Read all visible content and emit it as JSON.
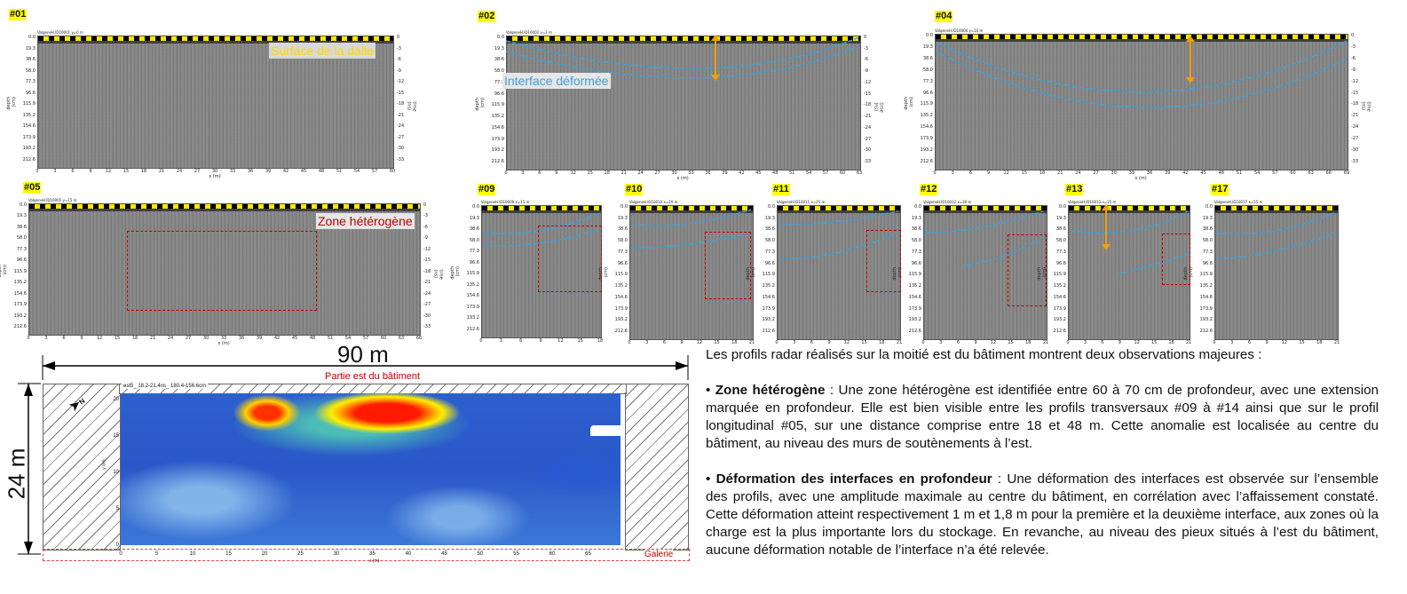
{
  "panels": [
    {
      "id": "p01",
      "tag": "#01",
      "file": "ValgeneH.ID10001   y=0 m",
      "yticks": [
        "0.0",
        "19.3",
        "38.6",
        "58.0",
        "77.3",
        "96.6",
        "115.9",
        "135.2",
        "154.6",
        "173.9",
        "193.2",
        "212.6"
      ],
      "yrticks": [
        "0",
        "-3",
        "-6",
        "-9",
        "-12",
        "-15",
        "-18",
        "-21",
        "-24",
        "-27",
        "-30",
        "-33"
      ],
      "xticks": [
        "0",
        "3",
        "6",
        "9",
        "12",
        "15",
        "18",
        "21",
        "24",
        "27",
        "30",
        "33",
        "36",
        "39",
        "42",
        "45",
        "48",
        "51",
        "54",
        "57",
        "60"
      ],
      "xlabel": "x (m)",
      "ylabel": "depth (cm)",
      "yrlabel": "time (ns)"
    },
    {
      "id": "p02",
      "tag": "#02",
      "file": "ValgeneH.ID10002   y=1 m",
      "yticks": [
        "0.0",
        "19.3",
        "38.6",
        "58.0",
        "77.3",
        "96.6",
        "115.9",
        "135.2",
        "154.6",
        "173.9",
        "193.2",
        "212.6"
      ],
      "yrticks": [
        "0",
        "-3",
        "-6",
        "-9",
        "-12",
        "-15",
        "-18",
        "-21",
        "-24",
        "-27",
        "-30",
        "-33"
      ],
      "xticks": [
        "0",
        "3",
        "6",
        "9",
        "12",
        "15",
        "18",
        "21",
        "24",
        "27",
        "30",
        "33",
        "36",
        "39",
        "42",
        "45",
        "48",
        "51",
        "54",
        "57",
        "60",
        "63"
      ],
      "xlabel": "x (m)",
      "ylabel": "depth (cm)",
      "yrlabel": "time (ns)"
    },
    {
      "id": "p04",
      "tag": "#04",
      "file": "ValgeneH.ID10004   y=10 m",
      "yticks": [
        "0.0",
        "19.3",
        "38.6",
        "58.0",
        "77.3",
        "96.6",
        "115.9",
        "135.2",
        "154.6",
        "173.9",
        "193.2",
        "212.6"
      ],
      "yrticks": [
        "0",
        "-3",
        "-6",
        "-9",
        "-12",
        "-15",
        "-18",
        "-21",
        "-24",
        "-27",
        "-30",
        "-33"
      ],
      "xticks": [
        "0",
        "3",
        "6",
        "9",
        "12",
        "15",
        "18",
        "21",
        "24",
        "27",
        "30",
        "33",
        "36",
        "39",
        "42",
        "45",
        "48",
        "51",
        "54",
        "57",
        "60",
        "63",
        "66",
        "69"
      ],
      "xlabel": "x (m)",
      "ylabel": "depth (cm)",
      "yrlabel": "time (ns)"
    },
    {
      "id": "p05",
      "tag": "#05",
      "file": "ValgeneH.ID10005   y=15 m",
      "yticks": [
        "0.0",
        "19.3",
        "38.6",
        "58.0",
        "77.3",
        "96.6",
        "115.9",
        "135.2",
        "154.6",
        "173.9",
        "193.2",
        "212.6"
      ],
      "yrticks": [
        "0",
        "-3",
        "-6",
        "-9",
        "-12",
        "-15",
        "-18",
        "-21",
        "-24",
        "-27",
        "-30",
        "-33"
      ],
      "xticks": [
        "0",
        "3",
        "6",
        "9",
        "12",
        "15",
        "18",
        "21",
        "24",
        "27",
        "30",
        "33",
        "36",
        "39",
        "42",
        "45",
        "48",
        "51",
        "54",
        "57",
        "60",
        "63",
        "66"
      ],
      "xlabel": "x (m)",
      "ylabel": "depth (cm)",
      "yrlabel": "time (ns)"
    },
    {
      "id": "p09",
      "tag": "#09",
      "file": "ValgeneH.ID10009   x=15 m",
      "yticks": [
        "0.0",
        "19.3",
        "38.6",
        "58.0",
        "77.3",
        "96.6",
        "115.9",
        "135.2",
        "154.6",
        "173.9",
        "193.2",
        "212.6"
      ],
      "xticks": [
        "0",
        "3",
        "6",
        "9",
        "12",
        "15",
        "18"
      ],
      "xlabel": "",
      "ylabel": "depth (cm)"
    },
    {
      "id": "p10",
      "tag": "#10",
      "file": "ValgeneH.ID10010   x=20 m",
      "yticks": [
        "0.0",
        "19.3",
        "38.6",
        "58.0",
        "77.3",
        "96.6",
        "115.9",
        "135.2",
        "154.6",
        "173.9",
        "193.2",
        "212.6"
      ],
      "xticks": [
        "0",
        "3",
        "6",
        "9",
        "12",
        "15",
        "18",
        "21"
      ],
      "xlabel": "",
      "ylabel": "depth (cm)"
    },
    {
      "id": "p11",
      "tag": "#11",
      "file": "ValgeneH.ID10011   x=25 m",
      "yticks": [
        "0.0",
        "19.3",
        "38.6",
        "58.0",
        "77.3",
        "96.6",
        "115.9",
        "135.2",
        "154.6",
        "173.9",
        "193.2",
        "212.6"
      ],
      "xticks": [
        "0",
        "3",
        "6",
        "9",
        "12",
        "15",
        "18",
        "21"
      ],
      "xlabel": "",
      "ylabel": "depth (cm)"
    },
    {
      "id": "p12",
      "tag": "#12",
      "file": "ValgeneH.ID10012   x=30 m",
      "yticks": [
        "0.0",
        "19.3",
        "38.6",
        "58.0",
        "77.3",
        "96.6",
        "115.9",
        "135.2",
        "154.6",
        "173.9",
        "193.2",
        "212.6"
      ],
      "xticks": [
        "0",
        "3",
        "6",
        "9",
        "12",
        "15",
        "18",
        "21"
      ],
      "xlabel": "",
      "ylabel": "depth (cm)"
    },
    {
      "id": "p13",
      "tag": "#13",
      "file": "ValgeneH.ID10013   x=35 m",
      "yticks": [
        "0.0",
        "19.3",
        "38.6",
        "58.0",
        "77.3",
        "96.6",
        "115.9",
        "135.2",
        "154.6",
        "173.9",
        "193.2",
        "212.6"
      ],
      "xticks": [
        "0",
        "3",
        "6",
        "9",
        "12",
        "15",
        "18",
        "21"
      ],
      "xlabel": "",
      "ylabel": "depth (cm)"
    },
    {
      "id": "p17",
      "tag": "#17",
      "file": "ValgeneH.ID10017   x=55 m",
      "yticks": [
        "0.0",
        "19.3",
        "38.6",
        "58.0",
        "77.3",
        "96.6",
        "115.9",
        "135.2",
        "154.6",
        "173.9",
        "193.2",
        "212.6"
      ],
      "xticks": [
        "0",
        "3",
        "6",
        "9",
        "12",
        "15",
        "18",
        "21"
      ],
      "xlabel": "",
      "ylabel": "depth (cm)"
    }
  ],
  "annotations": {
    "surface": "Surface de la dalle",
    "interface": "Interface déformée",
    "zone": "Zone hétérogène"
  },
  "colors": {
    "surface": "#ffd700",
    "interface": "#3aa0d8",
    "zone": "#c00000",
    "arrow": "#f0a000",
    "highlight": "#ffff00"
  },
  "map": {
    "width_label": "90 m",
    "height_label": "24 m",
    "title": "Partie est du bâtiment",
    "file_label": "est5_ 18.2-21.4ns_ 180.4-156.6cm",
    "gallery": "Galerie",
    "xaxis_label": "x (m)",
    "yaxis_label": "y (m)",
    "xticks": [
      "0",
      "5",
      "10",
      "15",
      "20",
      "25",
      "30",
      "35",
      "40",
      "45",
      "50",
      "55",
      "60",
      "65"
    ],
    "yticks": [
      "20",
      "15",
      "10",
      "5",
      "0"
    ]
  },
  "text": {
    "intro": "Les profils radar réalisés sur la moitié est du bâtiment montrent deux observations majeures :",
    "b1_title": "Zone hétérogène",
    "b1_body": " : Une zone hétérogène est identifiée entre 60 à 70 cm de profondeur, avec une extension marquée en profondeur. Elle est bien visible entre les profils transversaux #09 à #14 ainsi que sur le profil longitudinal #05, sur une distance comprise entre 18 et 48 m. Cette anomalie est localisée au centre du bâtiment, au niveau des murs de soutènements à l’est.",
    "b2_title": "Déformation des interfaces en profondeur",
    "b2_body": " : Une déformation des interfaces est observée sur l’ensemble des profils, avec une amplitude maximale au centre du bâtiment, en corrélation avec l’affaissement constaté. Cette déformation atteint respectivement 1 m et 1,8 m pour la première et la deuxième interface, aux zones où la charge est la plus importante lors du stockage. En revanche, au niveau des pieux situés à l’est du bâtiment, aucune déformation notable de l’interface n’a été relevée."
  }
}
